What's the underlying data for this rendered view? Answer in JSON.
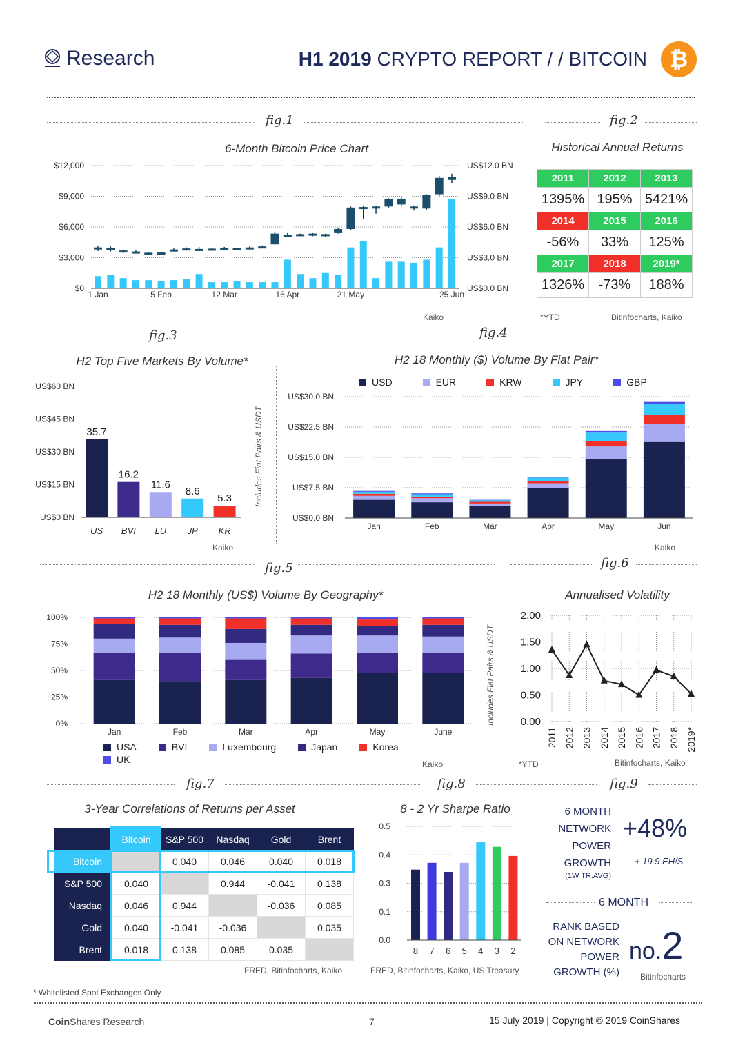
{
  "header": {
    "brand": "Research",
    "title_bold": "H1 2019",
    "title_rest": "CRYPTO REPORT / / BITCOIN",
    "coin_symbol": "₿",
    "coin_color": "#f7931a"
  },
  "fig_labels": {
    "f1": "fig.1",
    "f2": "fig.2",
    "f3": "fig.3",
    "f4": "fig.4",
    "f5": "fig.5",
    "f6": "fig.6",
    "f7": "fig.7",
    "f8": "fig.8",
    "f9": "fig.9"
  },
  "fig1": {
    "title": "6-Month Bitcoin Price Chart",
    "source": "Kaiko"
  },
  "fig2": {
    "title": "Historical Annual Returns",
    "note": "*YTD",
    "source": "Bitinfocharts, Kaiko",
    "rows": [
      [
        {
          "year": "2011",
          "value": "1395%",
          "color": "#2ecc5f"
        },
        {
          "year": "2012",
          "value": "195%",
          "color": "#2ecc5f"
        },
        {
          "year": "2013",
          "value": "5421%",
          "color": "#2ecc5f"
        }
      ],
      [
        {
          "year": "2014",
          "value": "-56%",
          "color": "#f2302a"
        },
        {
          "year": "2015",
          "value": "33%",
          "color": "#2ecc5f"
        },
        {
          "year": "2016",
          "value": "125%",
          "color": "#2ecc5f"
        }
      ],
      [
        {
          "year": "2017",
          "value": "1326%",
          "color": "#2ecc5f"
        },
        {
          "year": "2018",
          "value": "-73%",
          "color": "#f2302a"
        },
        {
          "year": "2019*",
          "value": "188%",
          "color": "#2ecc5f"
        }
      ]
    ]
  },
  "fig3": {
    "title": "H2 Top Five Markets By Volume*",
    "side_label": "Includes Fiat Pairs & USDT",
    "source": "Kaiko"
  },
  "fig4": {
    "title": "H2 18 Monthly ($) Volume By Fiat Pair*",
    "source": "Kaiko"
  },
  "fig5": {
    "title": "H2 18 Monthly (US$) Volume By Geography*",
    "side_label": "Includes Fiat Pairs & USDT",
    "source": "Kaiko"
  },
  "fig6": {
    "title": "Annualised Volatility",
    "note": "*YTD",
    "source": "Bitinfocharts, Kaiko"
  },
  "fig7": {
    "title": "3-Year Correlations of Returns per Asset",
    "source": "FRED, Bitinfocharts, Kaiko",
    "columns": [
      "Bitcoin",
      "S&P 500",
      "Nasdaq",
      "Gold",
      "Brent"
    ],
    "rows": [
      {
        "label": "Bitcoin",
        "cells": [
          "",
          "0.040",
          "0.046",
          "0.040",
          "0.018"
        ]
      },
      {
        "label": "S&P 500",
        "cells": [
          "0.040",
          "",
          "0.944",
          "-0.041",
          "0.138"
        ]
      },
      {
        "label": "Nasdaq",
        "cells": [
          "0.046",
          "0.944",
          "",
          "-0.036",
          "0.085"
        ]
      },
      {
        "label": "Gold",
        "cells": [
          "0.040",
          "-0.041",
          "-0.036",
          "",
          "0.035"
        ]
      },
      {
        "label": "Brent",
        "cells": [
          "0.018",
          "0.138",
          "0.085",
          "0.035",
          ""
        ]
      }
    ]
  },
  "fig8": {
    "title": "8 - 2 Yr Sharpe Ratio",
    "source": "FRED, Bitinfocharts, Kaiko, US Treasury"
  },
  "fig9": {
    "label1_l1": "6 MONTH",
    "label1_l2": "NETWORK",
    "label1_l3": "POWER",
    "label1_l4": "GROWTH",
    "label1_sub": "(1W TR.AVG)",
    "big": "+48%",
    "sub": "+ 19.9 EH/S",
    "heading2": "6 MONTH",
    "label2_l1": "RANK BASED",
    "label2_l2": "ON NETWORK",
    "label2_l3": "POWER",
    "label2_l4": "GROWTH (%)",
    "rank_prefix": "no.",
    "rank": "2",
    "source": "Bitinfocharts"
  },
  "footnote": "* Whitelisted Spot Exchanges Only",
  "footer": {
    "brand_bold": "Coin",
    "brand_rest": "Shares Research",
    "page": "7",
    "date": "15 July 2019",
    "copyright": "Copyright © 2019 CoinShares"
  },
  "chart_data": [
    {
      "id": "fig1",
      "type": "candlestick+bar",
      "title": "6-Month Bitcoin Price Chart",
      "x_ticks": [
        "1 Jan",
        "5 Feb",
        "12 Mar",
        "16 Apr",
        "21 May",
        "25 Jun"
      ],
      "y_left_ticks": [
        "$0",
        "$3,000",
        "$6,000",
        "$9,000",
        "$12,000"
      ],
      "y_left_lim": [
        0,
        12000
      ],
      "y_right_ticks": [
        "US$0.0 BN",
        "US$3.0 BN",
        "US$6.0 BN",
        "US$9.0 BN",
        "US$12.0 BN"
      ],
      "y_right_lim": [
        0,
        12
      ],
      "candles": [
        {
          "o": 4000,
          "c": 3800,
          "h": 4150,
          "l": 3650
        },
        {
          "o": 3950,
          "c": 3750,
          "h": 4100,
          "l": 3600
        },
        {
          "o": 3700,
          "c": 3550,
          "h": 3800,
          "l": 3450
        },
        {
          "o": 3600,
          "c": 3500,
          "h": 3700,
          "l": 3400
        },
        {
          "o": 3480,
          "c": 3440,
          "h": 3550,
          "l": 3350
        },
        {
          "o": 3500,
          "c": 3420,
          "h": 3600,
          "l": 3300
        },
        {
          "o": 3800,
          "c": 3700,
          "h": 3900,
          "l": 3600
        },
        {
          "o": 3900,
          "c": 3780,
          "h": 4000,
          "l": 3700
        },
        {
          "o": 3850,
          "c": 3740,
          "h": 4050,
          "l": 3650
        },
        {
          "o": 3880,
          "c": 3800,
          "h": 3950,
          "l": 3700
        },
        {
          "o": 3920,
          "c": 3850,
          "h": 4050,
          "l": 3800
        },
        {
          "o": 3950,
          "c": 3900,
          "h": 4000,
          "l": 3850
        },
        {
          "o": 4000,
          "c": 3950,
          "h": 4100,
          "l": 3900
        },
        {
          "o": 4100,
          "c": 4000,
          "h": 4200,
          "l": 3950
        },
        {
          "o": 4300,
          "c": 5350,
          "h": 5450,
          "l": 4300
        },
        {
          "o": 5100,
          "c": 5250,
          "h": 5400,
          "l": 5050
        },
        {
          "o": 5200,
          "c": 5300,
          "h": 5350,
          "l": 5150
        },
        {
          "o": 5200,
          "c": 5350,
          "h": 5400,
          "l": 5100
        },
        {
          "o": 5300,
          "c": 5200,
          "h": 5350,
          "l": 5050
        },
        {
          "o": 5400,
          "c": 5800,
          "h": 5900,
          "l": 5350
        },
        {
          "o": 5800,
          "c": 7900,
          "h": 8000,
          "l": 5700
        },
        {
          "o": 7900,
          "c": 7950,
          "h": 8100,
          "l": 6800
        },
        {
          "o": 8000,
          "c": 8000,
          "h": 8100,
          "l": 7300
        },
        {
          "o": 8000,
          "c": 8700,
          "h": 8800,
          "l": 7900
        },
        {
          "o": 8700,
          "c": 8200,
          "h": 8900,
          "l": 8000
        },
        {
          "o": 8000,
          "c": 7900,
          "h": 8100,
          "l": 7600
        },
        {
          "o": 7800,
          "c": 9100,
          "h": 9200,
          "l": 7700
        },
        {
          "o": 9200,
          "c": 10800,
          "h": 11000,
          "l": 8900
        },
        {
          "o": 10900,
          "c": 10600,
          "h": 11200,
          "l": 10300
        }
      ],
      "volume_bn": [
        1.2,
        1.3,
        1.0,
        0.8,
        0.8,
        0.7,
        0.8,
        0.9,
        1.4,
        0.6,
        0.6,
        0.7,
        0.6,
        0.6,
        0.6,
        2.8,
        1.4,
        1.0,
        1.5,
        1.3,
        4.0,
        4.6,
        1.0,
        2.6,
        2.6,
        2.5,
        2.8,
        4.0,
        8.7
      ]
    },
    {
      "id": "fig3",
      "type": "bar",
      "title": "H2 Top Five Markets By Volume*",
      "categories": [
        "US",
        "BVI",
        "LU",
        "JP",
        "KR"
      ],
      "values": [
        35.7,
        16.2,
        11.6,
        8.6,
        5.3
      ],
      "colors": [
        "#1a2350",
        "#3e2a8a",
        "#a7aaf0",
        "#35c8fa",
        "#f2302a"
      ],
      "y_ticks": [
        "US$0 BN",
        "US$15 BN",
        "US$30 BN",
        "US$45 BN",
        "US$60 BN"
      ],
      "ylim": [
        0,
        60
      ]
    },
    {
      "id": "fig4",
      "type": "stacked-bar",
      "title": "H2 18 Monthly ($) Volume By Fiat Pair*",
      "categories": [
        "Jan",
        "Feb",
        "Mar",
        "Apr",
        "May",
        "Jun"
      ],
      "y_ticks": [
        "US$0.0 BN",
        "US$7.5 BN",
        "US$15.0 BN",
        "US$22.5 BN",
        "US$30.0 BN"
      ],
      "ylim": [
        0,
        30
      ],
      "series": [
        {
          "name": "USD",
          "color": "#1a2350",
          "values": [
            4.5,
            3.9,
            3.0,
            7.4,
            14.6,
            18.8
          ]
        },
        {
          "name": "EUR",
          "color": "#a7aaf0",
          "values": [
            1.0,
            1.0,
            0.6,
            1.2,
            3.1,
            4.4
          ]
        },
        {
          "name": "KRW",
          "color": "#f2302a",
          "values": [
            0.5,
            0.4,
            0.4,
            0.5,
            1.4,
            2.2
          ]
        },
        {
          "name": "JPY",
          "color": "#35c8fa",
          "values": [
            0.5,
            0.6,
            0.4,
            0.9,
            2.0,
            2.8
          ]
        },
        {
          "name": "GBP",
          "color": "#4d4de8",
          "values": [
            0.2,
            0.2,
            0.1,
            0.2,
            0.4,
            0.5
          ]
        }
      ]
    },
    {
      "id": "fig5",
      "type": "stacked-bar",
      "title": "H2 18 Monthly (US$) Volume By Geography*",
      "categories": [
        "Jan",
        "Feb",
        "Mar",
        "Apr",
        "May",
        "June"
      ],
      "y_ticks": [
        "0%",
        "25%",
        "50%",
        "75%",
        "100%"
      ],
      "ylim": [
        0,
        100
      ],
      "series": [
        {
          "name": "USA",
          "color": "#1a2350",
          "values": [
            41,
            40,
            41,
            43,
            48,
            48
          ]
        },
        {
          "name": "BVI",
          "color": "#3e2a8a",
          "values": [
            26,
            27,
            19,
            23,
            19,
            19
          ]
        },
        {
          "name": "Luxembourg",
          "color": "#a7aaf0",
          "values": [
            13,
            14,
            16,
            17,
            16,
            15
          ]
        },
        {
          "name": "Japan",
          "color": "#322a80",
          "values": [
            14,
            12,
            13,
            10,
            9,
            11
          ]
        },
        {
          "name": "Korea",
          "color": "#f2302a",
          "values": [
            5,
            6,
            10,
            6,
            6,
            6
          ]
        },
        {
          "name": "UK",
          "color": "#4d4de8",
          "values": [
            1,
            1,
            1,
            1,
            2,
            1
          ]
        }
      ]
    },
    {
      "id": "fig6",
      "type": "line",
      "title": "Annualised Volatility",
      "x": [
        "2011",
        "2012",
        "2013",
        "2014",
        "2015",
        "2016",
        "2017",
        "2018",
        "2019*"
      ],
      "values": [
        1.35,
        0.87,
        1.45,
        0.77,
        0.7,
        0.5,
        0.97,
        0.85,
        0.52
      ],
      "y_ticks": [
        "0.00",
        "0.50",
        "1.00",
        "1.50",
        "2.00"
      ],
      "ylim": [
        0,
        2
      ]
    },
    {
      "id": "fig8",
      "type": "bar",
      "title": "8 - 2 Yr Sharpe Ratio",
      "categories": [
        "8",
        "7",
        "6",
        "5",
        "4",
        "3",
        "2"
      ],
      "values": [
        0.31,
        0.34,
        0.3,
        0.34,
        0.43,
        0.41,
        0.37
      ],
      "colors": [
        "#1a2350",
        "#3e3ae0",
        "#322a80",
        "#a7aaf0",
        "#35c8fa",
        "#2ecc5f",
        "#f2302a"
      ],
      "y_ticks": [
        "0.0",
        "0.1",
        "0.3",
        "0.4",
        "0.5"
      ],
      "ylim": [
        0,
        0.5
      ]
    }
  ]
}
